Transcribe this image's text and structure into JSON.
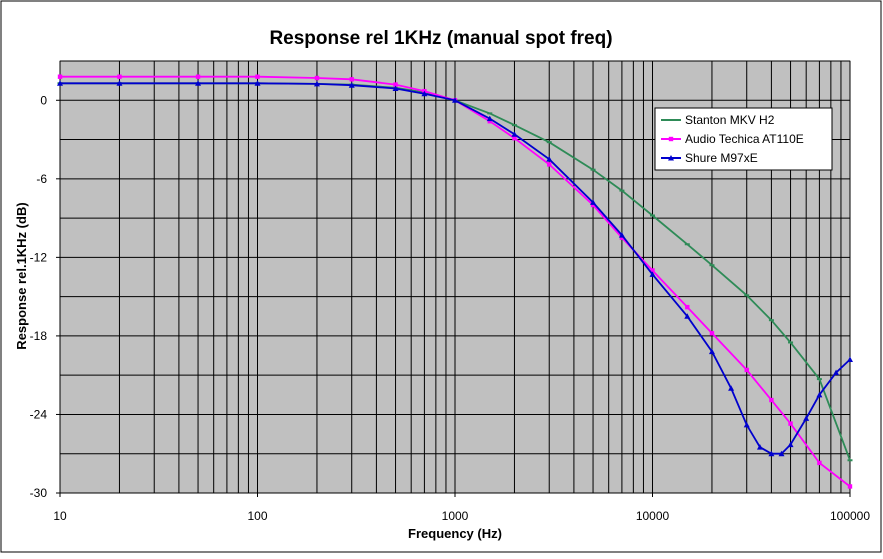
{
  "chart_data": {
    "type": "line",
    "title": "Response rel 1KHz (manual spot freq)",
    "xlabel": "Frequency (Hz)",
    "ylabel": "Response rel.1KHz (dB)",
    "x_scale": "log",
    "xlim": [
      10,
      100000
    ],
    "ylim": [
      -30,
      3
    ],
    "x_ticks": [
      10,
      100,
      1000,
      10000,
      100000
    ],
    "x_tick_labels": [
      "10",
      "100",
      "1000",
      "10000",
      "100000"
    ],
    "y_ticks": [
      0,
      -6,
      -12,
      -18,
      -24,
      -30
    ],
    "y_tick_labels": [
      "0",
      "-6",
      "-12",
      "-18",
      "-24",
      "-30"
    ],
    "grid": true,
    "legend_position": "top-right",
    "plot_background": "#c0c0c0",
    "series": [
      {
        "name": "Stanton MKV H2",
        "color": "#2e8b57",
        "marker": "dash",
        "x": [
          10,
          20,
          50,
          100,
          200,
          300,
          500,
          700,
          1000,
          1500,
          2000,
          3000,
          5000,
          7000,
          10000,
          15000,
          20000,
          30000,
          40000,
          50000,
          70000,
          100000
        ],
        "y": [
          1.3,
          1.3,
          1.3,
          1.3,
          1.25,
          1.2,
          0.95,
          0.6,
          0.0,
          -1.0,
          -1.9,
          -3.2,
          -5.3,
          -6.9,
          -8.8,
          -11.0,
          -12.6,
          -14.9,
          -16.8,
          -18.5,
          -21.3,
          -27.5
        ]
      },
      {
        "name": "Audio Techica AT110E",
        "color": "#ff00ff",
        "marker": "square",
        "x": [
          10,
          20,
          50,
          100,
          200,
          300,
          500,
          700,
          1000,
          1500,
          2000,
          3000,
          5000,
          7000,
          10000,
          15000,
          20000,
          30000,
          40000,
          50000,
          70000,
          100000
        ],
        "y": [
          1.8,
          1.8,
          1.8,
          1.8,
          1.7,
          1.6,
          1.2,
          0.7,
          0.0,
          -1.6,
          -2.9,
          -4.9,
          -8.0,
          -10.5,
          -13.0,
          -15.8,
          -17.8,
          -20.6,
          -22.9,
          -24.7,
          -27.7,
          -29.5
        ]
      },
      {
        "name": "Shure M97xE",
        "color": "#0000cd",
        "marker": "triangle",
        "x": [
          10,
          20,
          50,
          100,
          200,
          300,
          500,
          700,
          1000,
          1500,
          2000,
          3000,
          5000,
          7000,
          10000,
          15000,
          20000,
          25000,
          30000,
          35000,
          40000,
          45000,
          50000,
          60000,
          70000,
          85000,
          100000
        ],
        "y": [
          1.3,
          1.3,
          1.3,
          1.3,
          1.25,
          1.15,
          0.9,
          0.5,
          0.0,
          -1.4,
          -2.6,
          -4.5,
          -7.8,
          -10.3,
          -13.3,
          -16.5,
          -19.2,
          -22.0,
          -24.8,
          -26.5,
          -27.0,
          -27.0,
          -26.3,
          -24.3,
          -22.5,
          -20.8,
          -19.8
        ]
      }
    ]
  }
}
